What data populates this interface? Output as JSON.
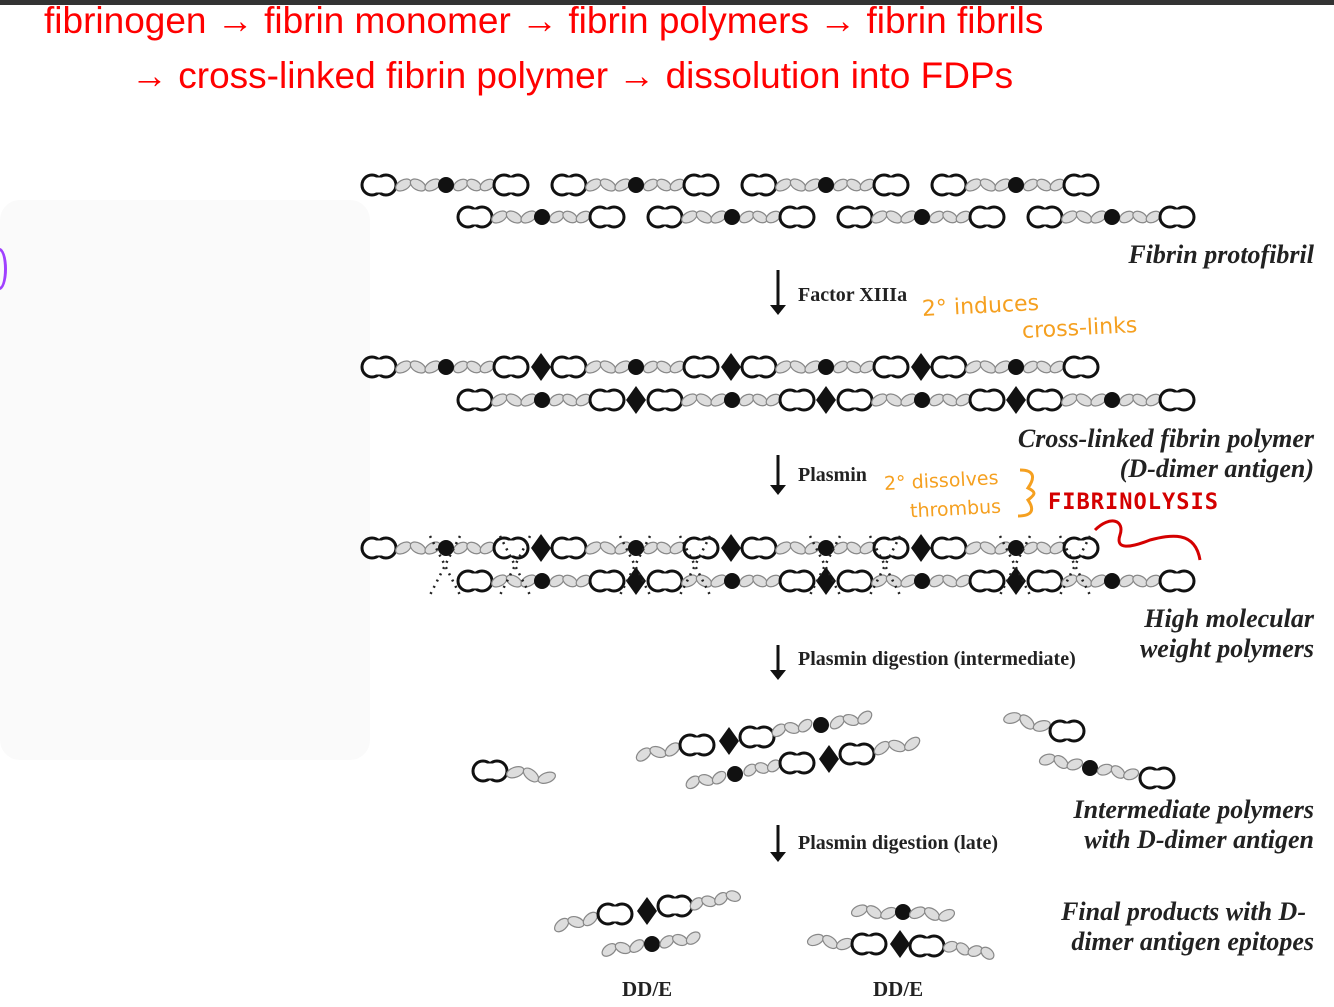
{
  "headline": {
    "line1": "fibrinogen → fibrin monomer → fibrin polymers → fibrin fibrils",
    "line2": "→ cross-linked fibrin polymer → dissolution into FDPs",
    "color": "#ff0000"
  },
  "stages": {
    "protofibril": "Fibrin protofibril",
    "crosslinked_1": "Cross-linked fibrin polymer",
    "crosslinked_2": "(D-dimer antigen)",
    "hmw_1": "High molecular",
    "hmw_2": "weight polymers",
    "intermediate_1": "Intermediate polymers",
    "intermediate_2": "with D-dimer antigen",
    "final_1": "Final products with D-",
    "final_2": "dimer antigen epitopes"
  },
  "steps": {
    "factor": "Factor XIIIa",
    "plasmin": "Plasmin",
    "digestion_intermediate": "Plasmin digestion (intermediate)",
    "digestion_late": "Plasmin digestion (late)"
  },
  "products": [
    "DD/E",
    "DD/E"
  ],
  "annotations": {
    "note1_line1": "2° induces",
    "note1_line2": "cross-links",
    "note2_line1": "2° dissolves",
    "note2_line2": "thrombus",
    "fibrinolysis": "FIBRINOLYSIS",
    "note_color": "#f5a020",
    "fibrinolysis_color": "#d40000"
  }
}
